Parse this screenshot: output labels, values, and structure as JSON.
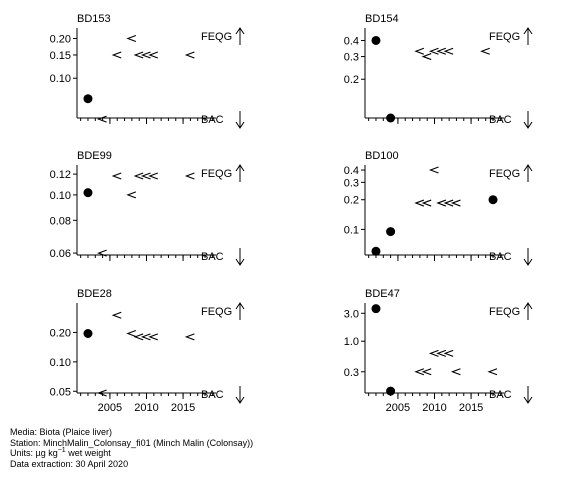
{
  "colors": {
    "ink": "#000000",
    "background": "#ffffff"
  },
  "markers": {
    "measured": "filled-circle",
    "less_than": "less-than-sign"
  },
  "footer": {
    "media": "Media: Biota (Plaice liver)",
    "station": "Station: MinchMalin_Colonsay_fi01 (Minch Malin (Colonsay))",
    "units_prefix": "Units:  µg kg",
    "units_sup": "−1",
    "units_suffix": " wet weight",
    "extraction": "Data extraction: 30 April 2020"
  },
  "chart_data": [
    {
      "type": "scatter",
      "title": "BD153",
      "xlim": [
        2000.5,
        2019.5
      ],
      "xticks": [
        2005,
        2010,
        2015
      ],
      "show_xtick_labels": false,
      "yscale": "log",
      "ylim": [
        0.05,
        0.24
      ],
      "yticks": [
        0.1,
        0.15,
        0.2
      ],
      "ytick_labels": [
        "0.10",
        "0.15",
        "0.20"
      ],
      "upper_label": "FEQG",
      "lower_label": "BAC",
      "points": [
        {
          "x": 2002,
          "y": 0.07,
          "marker": "filled-circle"
        },
        {
          "x": 2004,
          "y": 0.049,
          "marker": "less-than-sign"
        },
        {
          "x": 2006,
          "y": 0.15,
          "marker": "less-than-sign"
        },
        {
          "x": 2008,
          "y": 0.2,
          "marker": "less-than-sign"
        },
        {
          "x": 2009,
          "y": 0.15,
          "marker": "less-than-sign"
        },
        {
          "x": 2010,
          "y": 0.15,
          "marker": "less-than-sign"
        },
        {
          "x": 2011,
          "y": 0.15,
          "marker": "less-than-sign"
        },
        {
          "x": 2016,
          "y": 0.15,
          "marker": "less-than-sign"
        }
      ]
    },
    {
      "type": "scatter",
      "title": "BD154",
      "xlim": [
        2000.5,
        2019.5
      ],
      "xticks": [
        2005,
        2010,
        2015
      ],
      "show_xtick_labels": false,
      "yscale": "log",
      "ylim": [
        0.1,
        0.5
      ],
      "yticks": [
        0.2,
        0.3,
        0.4
      ],
      "ytick_labels": [
        "0.2",
        "0.3",
        "0.4"
      ],
      "upper_label": "FEQG",
      "lower_label": "BAC",
      "points": [
        {
          "x": 2002,
          "y": 0.4,
          "marker": "filled-circle"
        },
        {
          "x": 2004,
          "y": 0.1,
          "marker": "filled-circle"
        },
        {
          "x": 2008,
          "y": 0.33,
          "marker": "less-than-sign"
        },
        {
          "x": 2009,
          "y": 0.3,
          "marker": "less-than-sign"
        },
        {
          "x": 2010,
          "y": 0.33,
          "marker": "less-than-sign"
        },
        {
          "x": 2011,
          "y": 0.33,
          "marker": "less-than-sign"
        },
        {
          "x": 2012,
          "y": 0.33,
          "marker": "less-than-sign"
        },
        {
          "x": 2017,
          "y": 0.33,
          "marker": "less-than-sign"
        }
      ]
    },
    {
      "type": "scatter",
      "title": "BDE99",
      "xlim": [
        2000.5,
        2019.5
      ],
      "xticks": [
        2005,
        2010,
        2015
      ],
      "show_xtick_labels": false,
      "yscale": "log",
      "ylim": [
        0.059,
        0.13
      ],
      "yticks": [
        0.06,
        0.08,
        0.1,
        0.12
      ],
      "ytick_labels": [
        "0.06",
        "0.08",
        "0.10",
        "0.12"
      ],
      "upper_label": "FEQG",
      "lower_label": "BAC",
      "points": [
        {
          "x": 2002,
          "y": 0.102,
          "marker": "filled-circle"
        },
        {
          "x": 2004,
          "y": 0.06,
          "marker": "less-than-sign"
        },
        {
          "x": 2006,
          "y": 0.118,
          "marker": "less-than-sign"
        },
        {
          "x": 2008,
          "y": 0.1,
          "marker": "less-than-sign"
        },
        {
          "x": 2009,
          "y": 0.118,
          "marker": "less-than-sign"
        },
        {
          "x": 2010,
          "y": 0.118,
          "marker": "less-than-sign"
        },
        {
          "x": 2011,
          "y": 0.118,
          "marker": "less-than-sign"
        },
        {
          "x": 2016,
          "y": 0.118,
          "marker": "less-than-sign"
        }
      ]
    },
    {
      "type": "scatter",
      "title": "BD100",
      "xlim": [
        2000.5,
        2019.5
      ],
      "xticks": [
        2005,
        2010,
        2015
      ],
      "show_xtick_labels": false,
      "yscale": "log",
      "ylim": [
        0.055,
        0.45
      ],
      "yticks": [
        0.1,
        0.2,
        0.3,
        0.4
      ],
      "ytick_labels": [
        "0.1",
        "0.2",
        "0.3",
        "0.4"
      ],
      "upper_label": "FEQG",
      "lower_label": "BAC",
      "points": [
        {
          "x": 2002,
          "y": 0.06,
          "marker": "filled-circle"
        },
        {
          "x": 2004,
          "y": 0.095,
          "marker": "filled-circle"
        },
        {
          "x": 2010,
          "y": 0.4,
          "marker": "less-than-sign"
        },
        {
          "x": 2008,
          "y": 0.185,
          "marker": "less-than-sign"
        },
        {
          "x": 2009,
          "y": 0.185,
          "marker": "less-than-sign"
        },
        {
          "x": 2011,
          "y": 0.185,
          "marker": "less-than-sign"
        },
        {
          "x": 2012,
          "y": 0.185,
          "marker": "less-than-sign"
        },
        {
          "x": 2013,
          "y": 0.185,
          "marker": "less-than-sign"
        },
        {
          "x": 2018,
          "y": 0.2,
          "marker": "filled-circle"
        }
      ]
    },
    {
      "type": "scatter",
      "title": "BDE28",
      "xlim": [
        2000.5,
        2019.5
      ],
      "xticks": [
        2005,
        2010,
        2015
      ],
      "xtick_labels": [
        "2005",
        "2010",
        "2015"
      ],
      "show_xtick_labels": true,
      "yscale": "log",
      "ylim": [
        0.048,
        0.4
      ],
      "yticks": [
        0.05,
        0.1,
        0.2
      ],
      "ytick_labels": [
        "0.05",
        "0.10",
        "0.20"
      ],
      "upper_label": "FEQG",
      "lower_label": "BAC",
      "points": [
        {
          "x": 2002,
          "y": 0.195,
          "marker": "filled-circle"
        },
        {
          "x": 2004,
          "y": 0.048,
          "marker": "less-than-sign"
        },
        {
          "x": 2006,
          "y": 0.3,
          "marker": "less-than-sign"
        },
        {
          "x": 2008,
          "y": 0.195,
          "marker": "less-than-sign"
        },
        {
          "x": 2009,
          "y": 0.18,
          "marker": "less-than-sign"
        },
        {
          "x": 2010,
          "y": 0.18,
          "marker": "less-than-sign"
        },
        {
          "x": 2011,
          "y": 0.18,
          "marker": "less-than-sign"
        },
        {
          "x": 2016,
          "y": 0.18,
          "marker": "less-than-sign"
        }
      ]
    },
    {
      "type": "scatter",
      "title": "BDE47",
      "xlim": [
        2000.5,
        2019.5
      ],
      "xticks": [
        2005,
        2010,
        2015
      ],
      "xtick_labels": [
        "2005",
        "2010",
        "2015"
      ],
      "show_xtick_labels": true,
      "yscale": "log",
      "ylim": [
        0.13,
        4.5
      ],
      "yticks": [
        0.3,
        1.0,
        3.0
      ],
      "ytick_labels": [
        "0.3",
        "1.0",
        "3.0"
      ],
      "upper_label": "FEQG",
      "lower_label": "BAC",
      "points": [
        {
          "x": 2002,
          "y": 3.6,
          "marker": "filled-circle"
        },
        {
          "x": 2004,
          "y": 0.14,
          "marker": "filled-circle"
        },
        {
          "x": 2008,
          "y": 0.3,
          "marker": "less-than-sign"
        },
        {
          "x": 2009,
          "y": 0.3,
          "marker": "less-than-sign"
        },
        {
          "x": 2010,
          "y": 0.62,
          "marker": "less-than-sign"
        },
        {
          "x": 2011,
          "y": 0.62,
          "marker": "less-than-sign"
        },
        {
          "x": 2012,
          "y": 0.62,
          "marker": "less-than-sign"
        },
        {
          "x": 2013,
          "y": 0.3,
          "marker": "less-than-sign"
        },
        {
          "x": 2018,
          "y": 0.3,
          "marker": "less-than-sign"
        }
      ]
    }
  ]
}
